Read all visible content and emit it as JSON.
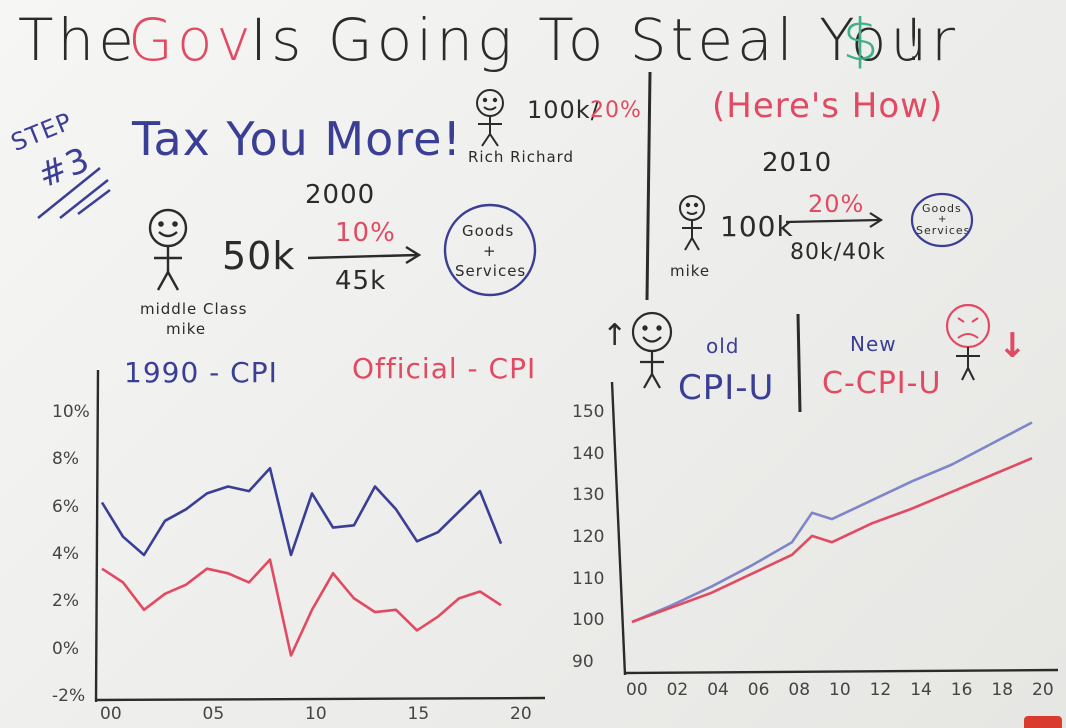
{
  "title": {
    "part1": "The",
    "gov": "Gov",
    "part2": "Is Going To Steal Your",
    "dollar": "$",
    "bang": "!"
  },
  "left": {
    "step_label": "STEP",
    "step_num": "#3",
    "headline": "Tax You More!",
    "rich_amount": "100k/",
    "rich_rate": "20%",
    "rich_name": "Rich Richard",
    "year": "2000",
    "income": "50k",
    "rate": "10%",
    "after_tax": "45k",
    "goods_line1": "Goods",
    "goods_line2": "+",
    "goods_line3": "Services",
    "person_line1": "middle Class",
    "person_line2": "mike"
  },
  "right": {
    "subtitle": "(Here's How)",
    "year": "2010",
    "income": "100k",
    "rate": "20%",
    "after_tax": "80k/40k",
    "person": "mike",
    "goods_line1": "Goods",
    "goods_line2": "+",
    "goods_line3": "Services",
    "up_arrow": "↑",
    "down_arrow": "↓",
    "old_label": "old",
    "old_index": "CPI-U",
    "new_label": "New",
    "new_index": "C-CPI-U"
  },
  "chart_data": [
    {
      "type": "line",
      "series": [
        {
          "name": "1990 - CPI",
          "color": "#3a3f95",
          "x": [
            2000,
            2001,
            2002,
            2003,
            2004,
            2005,
            2006,
            2007,
            2008,
            2009,
            2010,
            2011,
            2012,
            2013,
            2014,
            2015,
            2016,
            2017,
            2018,
            2019
          ],
          "values": [
            6.3,
            4.8,
            4.0,
            5.5,
            6.0,
            6.7,
            7.0,
            6.8,
            7.8,
            4.0,
            6.7,
            5.2,
            5.3,
            7.0,
            6.0,
            4.6,
            5.0,
            5.9,
            6.8,
            4.5
          ]
        },
        {
          "name": "Official - CPI",
          "color": "#e24a62",
          "x": [
            2000,
            2001,
            2002,
            2003,
            2004,
            2005,
            2006,
            2007,
            2008,
            2009,
            2010,
            2011,
            2012,
            2013,
            2014,
            2015,
            2016,
            2017,
            2018,
            2019
          ],
          "values": [
            3.4,
            2.8,
            1.6,
            2.3,
            2.7,
            3.4,
            3.2,
            2.8,
            3.8,
            -0.4,
            1.6,
            3.2,
            2.1,
            1.5,
            1.6,
            0.7,
            1.3,
            2.1,
            2.4,
            1.8
          ]
        }
      ],
      "yticks": [
        "10%",
        "8%",
        "6%",
        "4%",
        "2%",
        "0%",
        "-2%"
      ],
      "xticks": [
        "00",
        "05",
        "10",
        "15",
        "20"
      ],
      "ylim": [
        -2,
        10
      ],
      "xlim": [
        2000,
        2020
      ]
    },
    {
      "type": "line",
      "series": [
        {
          "name": "CPI-U",
          "color": "#7f86c7",
          "x": [
            2000,
            2002,
            2004,
            2006,
            2008,
            2009,
            2010,
            2012,
            2014,
            2016,
            2018,
            2020
          ],
          "values": [
            100,
            104,
            108.5,
            113.5,
            119,
            126,
            124.5,
            129,
            133.5,
            137.5,
            142.5,
            147.5
          ]
        },
        {
          "name": "C-CPI-U",
          "color": "#e24a62",
          "x": [
            2000,
            2002,
            2004,
            2006,
            2008,
            2009,
            2010,
            2012,
            2014,
            2016,
            2018,
            2020
          ],
          "values": [
            100,
            103.5,
            107,
            111.5,
            116,
            120.5,
            119,
            123.5,
            127,
            131,
            135,
            139
          ]
        }
      ],
      "yticks": [
        "150",
        "140",
        "130",
        "120",
        "110",
        "100",
        "90"
      ],
      "xticks": [
        "00",
        "02",
        "04",
        "06",
        "08",
        "10",
        "12",
        "14",
        "16",
        "18",
        "20"
      ],
      "ylim": [
        90,
        150
      ],
      "xlim": [
        2000,
        2020
      ]
    }
  ]
}
